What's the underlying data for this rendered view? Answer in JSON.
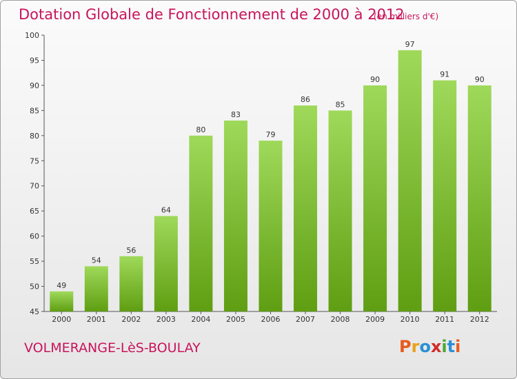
{
  "header": {
    "title": "Dotation Globale de Fonctionnement de 2000 à 2012",
    "unit": "(en milliers d'€)"
  },
  "footer": {
    "commune": "VOLMERANGE-LèS-BOULAY",
    "logo": "Proxiti"
  },
  "colors": {
    "accent": "#c8145a",
    "bar_light": "#9fd95a",
    "bar_dark": "#5f9e12",
    "logo_letters": [
      "#e65c1e",
      "#e8a21c",
      "#2a8fd6",
      "#d22b2b",
      "#4aa832",
      "#2a8fd6",
      "#e65c1e"
    ]
  },
  "chart_data": {
    "type": "bar",
    "title": "Dotation Globale de Fonctionnement de 2000 à 2012",
    "subtitle": "(en milliers d'€)",
    "xlabel": "",
    "ylabel": "",
    "categories": [
      "2000",
      "2001",
      "2002",
      "2003",
      "2004",
      "2005",
      "2006",
      "2007",
      "2008",
      "2009",
      "2010",
      "2011",
      "2012"
    ],
    "values": [
      49,
      54,
      56,
      64,
      80,
      83,
      79,
      86,
      85,
      90,
      97,
      91,
      90
    ],
    "ylim": [
      45,
      100
    ],
    "yticks": [
      45,
      50,
      55,
      60,
      65,
      70,
      75,
      80,
      85,
      90,
      95,
      100
    ],
    "grid": false,
    "legend": "none"
  }
}
